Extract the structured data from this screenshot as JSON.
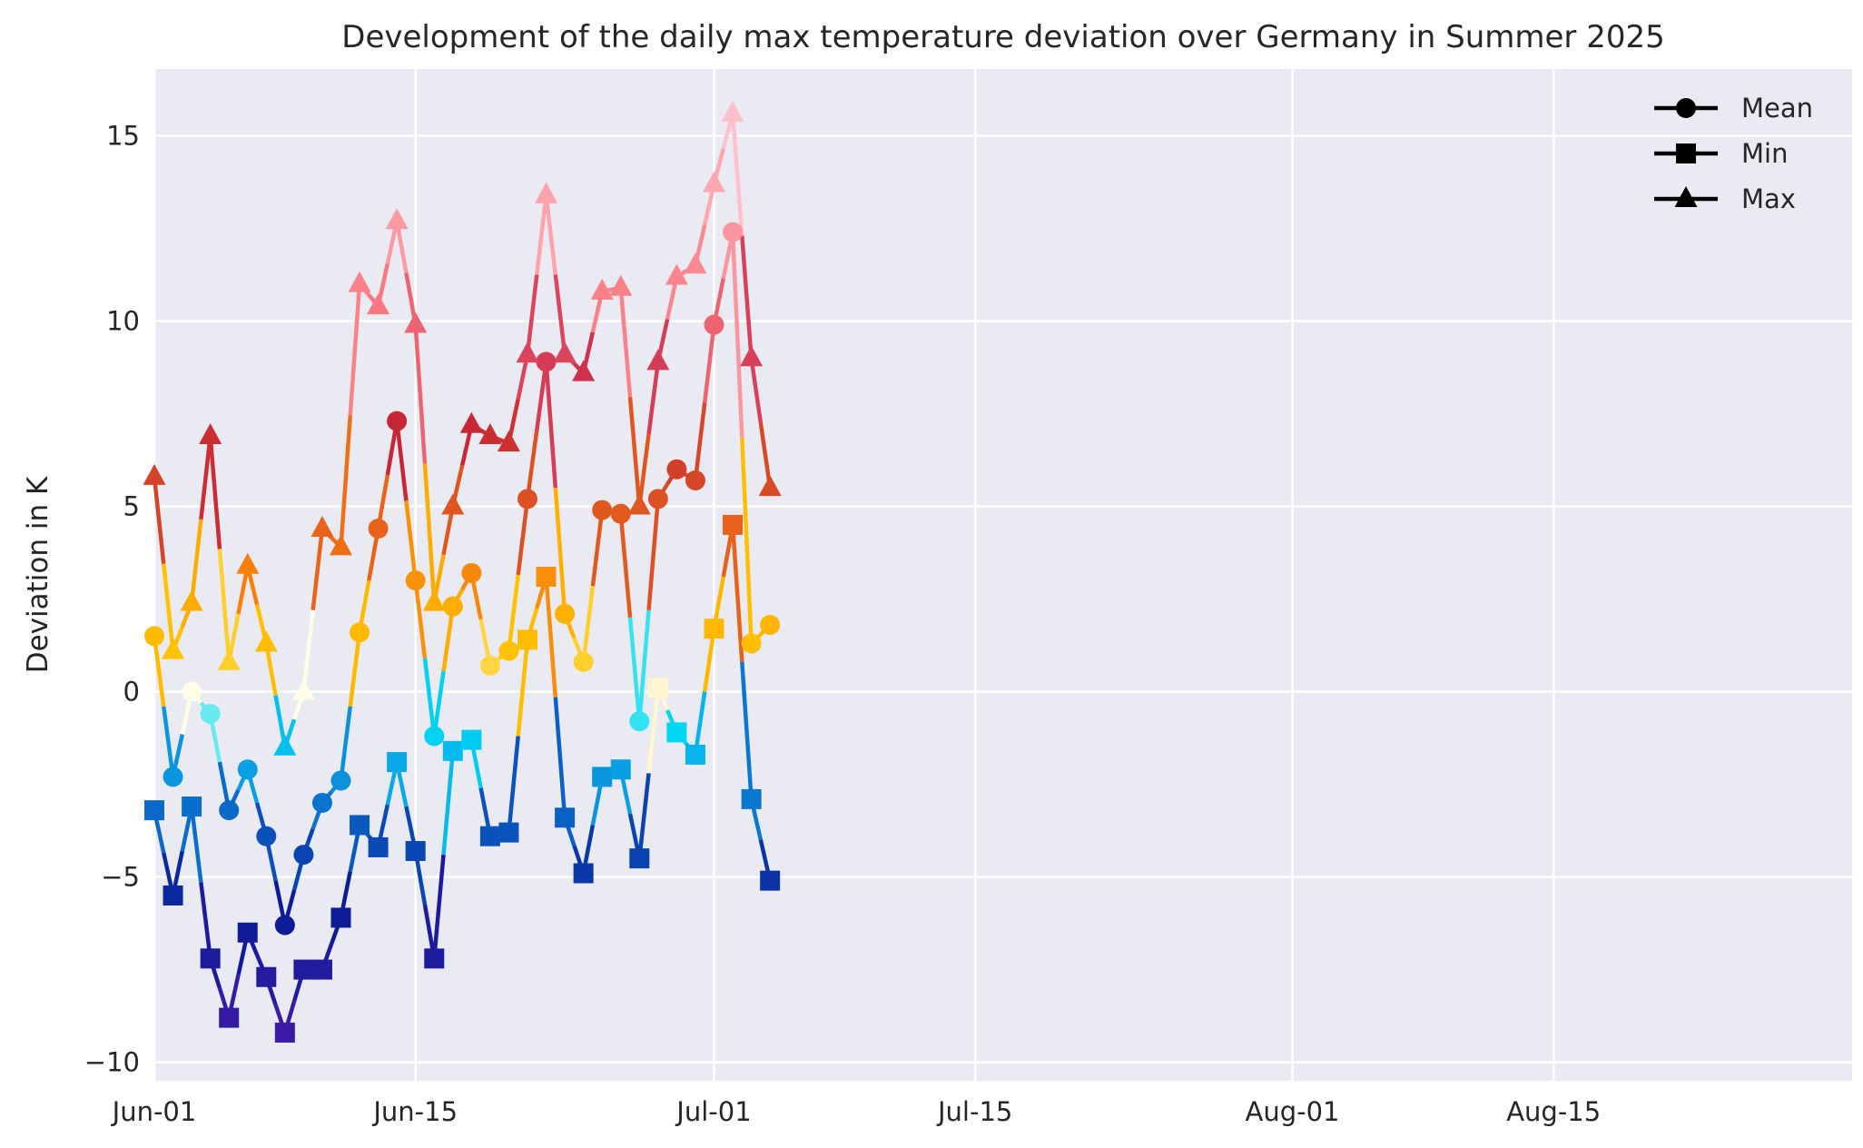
{
  "chart_data": {
    "type": "line",
    "title": "Development of the daily max temperature deviation over Germany in Summer 2025",
    "xlabel": "",
    "ylabel": "Deviation in K",
    "x_range": [
      "2025-06-01",
      "2025-08-31"
    ],
    "ylim": [
      -10.5,
      16.8
    ],
    "grid": true,
    "legend_position": "top-right",
    "x_ticks": [
      {
        "date": "2025-06-01",
        "label": "Jun-01"
      },
      {
        "date": "2025-06-15",
        "label": "Jun-15"
      },
      {
        "date": "2025-07-01",
        "label": "Jul-01"
      },
      {
        "date": "2025-07-15",
        "label": "Jul-15"
      },
      {
        "date": "2025-08-01",
        "label": "Aug-01"
      },
      {
        "date": "2025-08-15",
        "label": "Aug-15"
      }
    ],
    "y_ticks": [
      {
        "value": -10,
        "label": "−10"
      },
      {
        "value": -5,
        "label": "−5"
      },
      {
        "value": 0,
        "label": "0"
      },
      {
        "value": 5,
        "label": "5"
      },
      {
        "value": 10,
        "label": "10"
      },
      {
        "value": 15,
        "label": "15"
      }
    ],
    "x": [
      "2025-06-01",
      "2025-06-02",
      "2025-06-03",
      "2025-06-04",
      "2025-06-05",
      "2025-06-06",
      "2025-06-07",
      "2025-06-08",
      "2025-06-09",
      "2025-06-10",
      "2025-06-11",
      "2025-06-12",
      "2025-06-13",
      "2025-06-14",
      "2025-06-15",
      "2025-06-16",
      "2025-06-17",
      "2025-06-18",
      "2025-06-19",
      "2025-06-20",
      "2025-06-21",
      "2025-06-22",
      "2025-06-23",
      "2025-06-24",
      "2025-06-25",
      "2025-06-26",
      "2025-06-27",
      "2025-06-28",
      "2025-06-29",
      "2025-06-30",
      "2025-07-01",
      "2025-07-02",
      "2025-07-03",
      "2025-07-04"
    ],
    "series": [
      {
        "name": "Mean",
        "marker": "circle",
        "values": [
          1.5,
          -2.3,
          0.0,
          -0.6,
          -3.2,
          -2.1,
          -3.9,
          -6.3,
          -4.4,
          -3.0,
          -2.4,
          1.6,
          4.4,
          7.3,
          3.0,
          -1.2,
          2.3,
          3.2,
          0.7,
          1.1,
          5.2,
          8.9,
          2.1,
          0.8,
          4.9,
          4.8,
          -0.8,
          5.2,
          6.0,
          5.7,
          9.9,
          12.4,
          1.3,
          1.8
        ]
      },
      {
        "name": "Min",
        "marker": "square",
        "values": [
          -3.2,
          -5.5,
          -3.1,
          -7.2,
          -8.8,
          -6.5,
          -7.7,
          -9.2,
          -7.5,
          -7.5,
          -6.1,
          -3.6,
          -4.2,
          -1.9,
          -4.3,
          -7.2,
          -1.6,
          -1.3,
          -3.9,
          -3.8,
          1.4,
          3.1,
          -3.4,
          -4.9,
          -2.3,
          -2.1,
          -4.5,
          0.1,
          -1.1,
          -1.7,
          1.7,
          4.5,
          -2.9,
          -5.1
        ]
      },
      {
        "name": "Max",
        "marker": "triangle",
        "values": [
          5.8,
          1.1,
          2.4,
          6.9,
          0.8,
          3.4,
          1.3,
          -1.5,
          0.0,
          4.4,
          3.9,
          11.0,
          10.4,
          12.7,
          9.9,
          2.4,
          5.0,
          7.2,
          6.9,
          6.7,
          9.1,
          13.4,
          9.1,
          8.6,
          10.8,
          10.9,
          5.0,
          8.9,
          11.2,
          11.5,
          13.7,
          15.6,
          9.0,
          5.5
        ]
      }
    ],
    "colors": {
      "background": "#eaeaf2",
      "grid": "#ffffff",
      "text": "#262626",
      "legend_marker": "#000000",
      "colormap": [
        {
          "value": -9.2,
          "color": "#3b1aa8"
        },
        {
          "value": -6.0,
          "color": "#0a1c96"
        },
        {
          "value": -3.5,
          "color": "#0a5bc2"
        },
        {
          "value": -2.0,
          "color": "#0aa3e6"
        },
        {
          "value": -1.0,
          "color": "#00ddf5"
        },
        {
          "value": 0.0,
          "color": "#fffde8"
        },
        {
          "value": 1.0,
          "color": "#ffc400"
        },
        {
          "value": 2.5,
          "color": "#ffaa00"
        },
        {
          "value": 3.5,
          "color": "#f57a10"
        },
        {
          "value": 5.5,
          "color": "#d84a26"
        },
        {
          "value": 8.0,
          "color": "#c0183c"
        },
        {
          "value": 10.5,
          "color": "#fa7c84"
        },
        {
          "value": 15.6,
          "color": "#ffc0cb"
        }
      ]
    }
  }
}
